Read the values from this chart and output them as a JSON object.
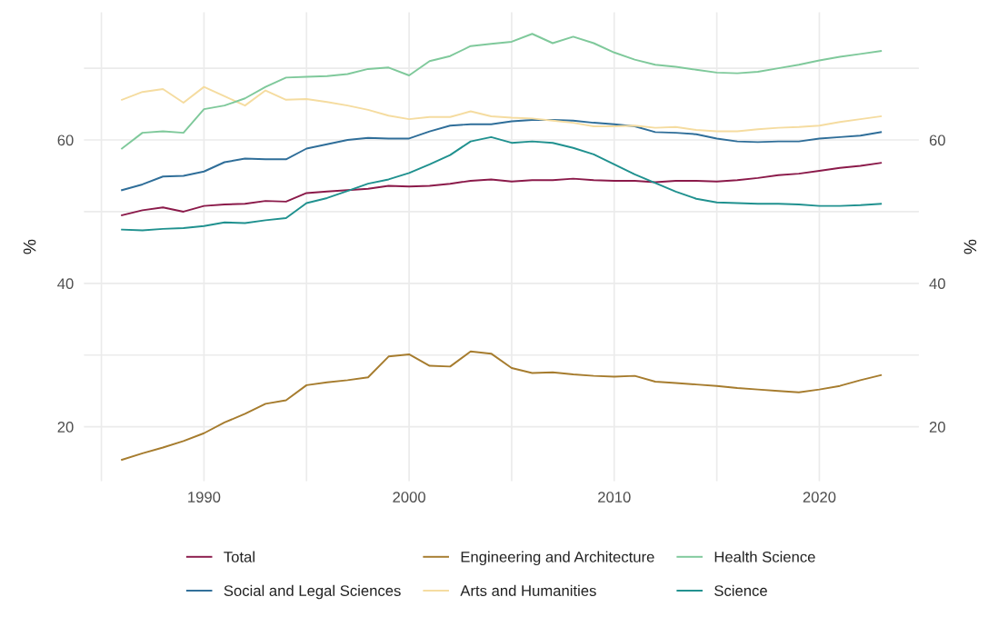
{
  "chart_data": {
    "type": "line",
    "ylabel": "%",
    "y2label": "%",
    "x": [
      1986,
      1987,
      1988,
      1989,
      1990,
      1991,
      1992,
      1993,
      1994,
      1995,
      1996,
      1997,
      1998,
      1999,
      2000,
      2001,
      2002,
      2003,
      2004,
      2005,
      2006,
      2007,
      2008,
      2009,
      2010,
      2011,
      2012,
      2013,
      2014,
      2015,
      2016,
      2017,
      2018,
      2019,
      2020,
      2021,
      2022,
      2023
    ],
    "series": [
      {
        "name": "Total",
        "color": "#8b1a4a",
        "values": [
          49.5,
          50.2,
          50.6,
          50.0,
          50.8,
          51.0,
          51.1,
          51.5,
          51.4,
          52.6,
          52.8,
          53.0,
          53.2,
          53.6,
          53.5,
          53.6,
          53.9,
          54.3,
          54.5,
          54.2,
          54.4,
          54.4,
          54.6,
          54.4,
          54.3,
          54.3,
          54.1,
          54.3,
          54.3,
          54.2,
          54.4,
          54.7,
          55.1,
          55.3,
          55.7,
          56.1,
          56.4,
          56.8
        ]
      },
      {
        "name": "Social and Legal Sciences",
        "color": "#2f6e99",
        "values": [
          53.0,
          53.8,
          54.9,
          55.0,
          55.6,
          56.9,
          57.4,
          57.3,
          57.3,
          58.8,
          59.4,
          60.0,
          60.3,
          60.2,
          60.2,
          61.2,
          62.0,
          62.2,
          62.2,
          62.6,
          62.8,
          62.8,
          62.7,
          62.4,
          62.2,
          61.9,
          61.1,
          61.0,
          60.8,
          60.2,
          59.8,
          59.7,
          59.8,
          59.8,
          60.2,
          60.4,
          60.6,
          61.1
        ]
      },
      {
        "name": "Engineering and Architecture",
        "color": "#a67c2e",
        "values": [
          15.4,
          16.3,
          17.1,
          18.0,
          19.1,
          20.6,
          21.8,
          23.2,
          23.7,
          25.8,
          26.2,
          26.5,
          26.9,
          29.8,
          30.1,
          28.5,
          28.4,
          30.5,
          30.2,
          28.2,
          27.5,
          27.6,
          27.3,
          27.1,
          27.0,
          27.1,
          26.3,
          26.1,
          25.9,
          25.7,
          25.4,
          25.2,
          25.0,
          24.8,
          25.2,
          25.7,
          26.5,
          27.2
        ]
      },
      {
        "name": "Arts and Humanities",
        "color": "#f5dca0",
        "values": [
          65.6,
          66.7,
          67.1,
          65.2,
          67.4,
          66.1,
          64.8,
          66.9,
          65.6,
          65.7,
          65.3,
          64.8,
          64.2,
          63.4,
          62.9,
          63.2,
          63.2,
          64.0,
          63.3,
          63.1,
          63.0,
          62.7,
          62.4,
          61.9,
          61.9,
          62.0,
          61.7,
          61.8,
          61.4,
          61.2,
          61.2,
          61.5,
          61.7,
          61.8,
          62.0,
          62.5,
          62.9,
          63.3
        ]
      },
      {
        "name": "Health Science",
        "color": "#7fc99b",
        "values": [
          58.8,
          61.0,
          61.2,
          61.0,
          64.3,
          64.8,
          65.8,
          67.4,
          68.7,
          68.8,
          68.9,
          69.2,
          69.9,
          70.1,
          69.0,
          71.0,
          71.7,
          73.1,
          73.4,
          73.7,
          74.8,
          73.5,
          74.4,
          73.5,
          72.2,
          71.2,
          70.5,
          70.2,
          69.8,
          69.4,
          69.3,
          69.5,
          70.0,
          70.5,
          71.1,
          71.6,
          72.0,
          72.4
        ]
      },
      {
        "name": "Science",
        "color": "#20918f",
        "values": [
          47.5,
          47.4,
          47.6,
          47.7,
          48.0,
          48.5,
          48.4,
          48.8,
          49.1,
          51.2,
          51.9,
          52.9,
          53.9,
          54.5,
          55.4,
          56.6,
          57.9,
          59.8,
          60.4,
          59.6,
          59.8,
          59.6,
          58.9,
          58.0,
          56.6,
          55.2,
          54.0,
          52.8,
          51.8,
          51.3,
          51.2,
          51.1,
          51.1,
          51.0,
          50.8,
          50.8,
          50.9,
          51.1
        ]
      }
    ],
    "xlim": [
      1984.15,
      2024.85
    ],
    "xticks": [
      {
        "value": 1985,
        "label": null
      },
      1990,
      {
        "value": 1995,
        "label": null
      },
      2000,
      {
        "value": 2005,
        "label": null
      },
      2010,
      {
        "value": 2015,
        "label": null
      },
      2020
    ],
    "ylim": [
      12.4,
      77.8
    ],
    "yticks": [
      20,
      {
        "value": 30,
        "label": null
      },
      40,
      {
        "value": 50,
        "label": null
      },
      60,
      {
        "value": 70,
        "label": null
      }
    ],
    "y2lim": [
      12.4,
      77.8
    ],
    "y2ticks": [
      20,
      {
        "value": 30,
        "label": null
      },
      40,
      {
        "value": 50,
        "label": null
      },
      60,
      {
        "value": 70,
        "label": null
      }
    ],
    "grid": true,
    "legend": "bottom",
    "marker": "none",
    "line_style": "solid"
  }
}
